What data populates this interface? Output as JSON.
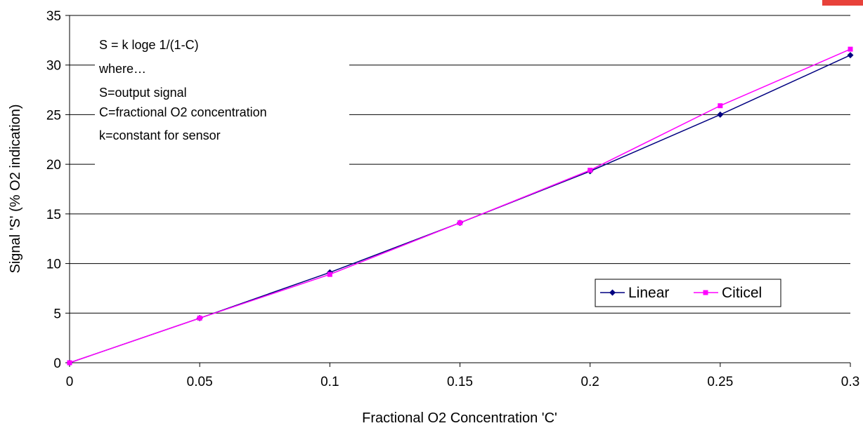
{
  "chart_data": {
    "type": "line",
    "title": "",
    "xlabel": "Fractional O2 Concentration 'C'",
    "ylabel": "Signal 'S' (% O2 indication)",
    "xlim": [
      0,
      0.3
    ],
    "ylim": [
      0,
      35
    ],
    "x_ticks": [
      "0",
      "0.05",
      "0.1",
      "0.15",
      "0.2",
      "0.25",
      "0.3"
    ],
    "y_ticks": [
      "0",
      "5",
      "10",
      "15",
      "20",
      "25",
      "30",
      "35"
    ],
    "x": [
      0,
      0.05,
      0.1,
      0.15,
      0.2,
      0.25,
      0.3
    ],
    "series": [
      {
        "name": "Linear",
        "color": "#000080",
        "marker": "diamond",
        "values": [
          0,
          4.5,
          9.1,
          14.1,
          19.3,
          25.0,
          31.0
        ]
      },
      {
        "name": "Citicel",
        "color": "#ff00ff",
        "marker": "square",
        "values": [
          0,
          4.5,
          8.9,
          14.1,
          19.4,
          25.9,
          31.6
        ]
      }
    ],
    "grid": "horizontal",
    "legend_position": "lower-right",
    "annotation": [
      "S = k loge 1/(1-C)",
      "where…",
      "S=output signal",
      "C=fractional O2 concentration",
      "k=constant for sensor"
    ],
    "corner_tab_color": "#e8423a"
  }
}
